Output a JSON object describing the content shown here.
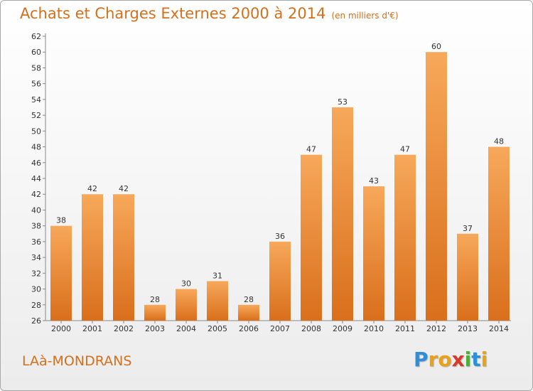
{
  "title": "Achats et Charges Externes 2000 à 2014",
  "unit": "(en milliers d'€)",
  "place": "LAà-MONDRANS",
  "logo": {
    "letters": [
      "P",
      "r",
      "o",
      "x",
      "i",
      "t",
      "i"
    ],
    "colors": [
      "#2e8fd6",
      "#e8a21a",
      "#e8a21a",
      "#d63a2a",
      "#4caf3a",
      "#2e8fd6",
      "#e8a21a"
    ]
  },
  "colors": {
    "accent": "#d4701c",
    "bar_light": "#f7a85a",
    "bar_dark": "#d96f1c"
  },
  "chart_data": {
    "type": "bar",
    "categories": [
      "2000",
      "2001",
      "2002",
      "2003",
      "2004",
      "2005",
      "2006",
      "2007",
      "2008",
      "2009",
      "2010",
      "2011",
      "2012",
      "2013",
      "2014"
    ],
    "values": [
      38,
      42,
      42,
      28,
      30,
      31,
      28,
      36,
      47,
      53,
      43,
      47,
      60,
      37,
      48
    ],
    "ylim": [
      26,
      62
    ],
    "yticks": [
      26,
      28,
      30,
      32,
      34,
      36,
      38,
      40,
      42,
      44,
      46,
      48,
      50,
      52,
      54,
      56,
      58,
      60,
      62
    ],
    "grid": false,
    "data_labels": true
  }
}
